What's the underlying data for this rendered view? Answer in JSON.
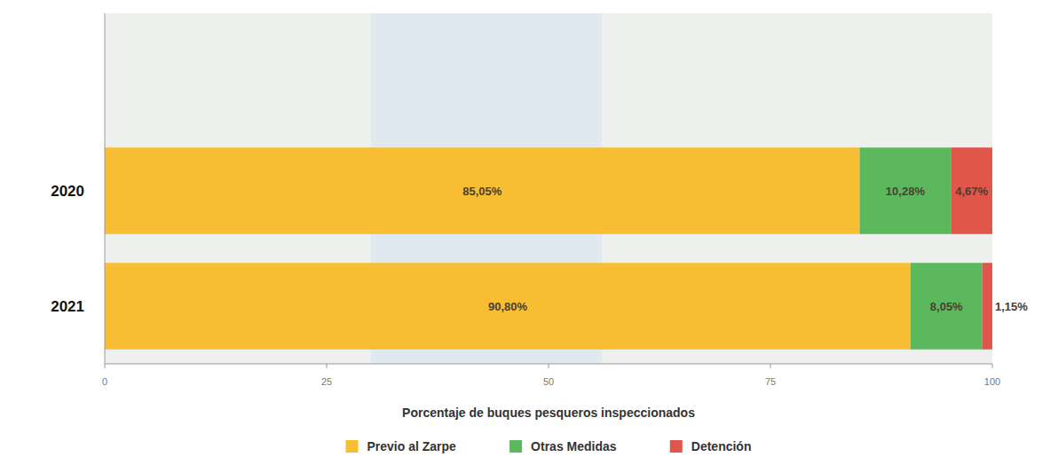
{
  "chart_data": {
    "type": "bar",
    "orientation": "horizontal",
    "stacked": true,
    "data_labels": true,
    "grid": false,
    "legend": "bottom",
    "x_label": "Porcentaje de buques pesqueros inspeccionados",
    "categories": [
      "2020",
      "2021"
    ],
    "xlim": [
      0,
      100
    ],
    "xticks": [
      0,
      25,
      50,
      75,
      100
    ],
    "series": [
      {
        "name": "Previo al Zarpe",
        "color": "#f7bd33",
        "values": [
          85.05,
          90.8
        ],
        "value_labels": [
          "85,05%",
          "90,80%"
        ]
      },
      {
        "name": "Otras Medidas",
        "color": "#5cb85c",
        "values": [
          10.28,
          8.05
        ],
        "value_labels": [
          "10,28%",
          "8,05%"
        ]
      },
      {
        "name": "Detención",
        "color": "#e0564b",
        "values": [
          4.67,
          1.15
        ],
        "value_labels": [
          "4,67%",
          "1,15%"
        ]
      }
    ]
  }
}
